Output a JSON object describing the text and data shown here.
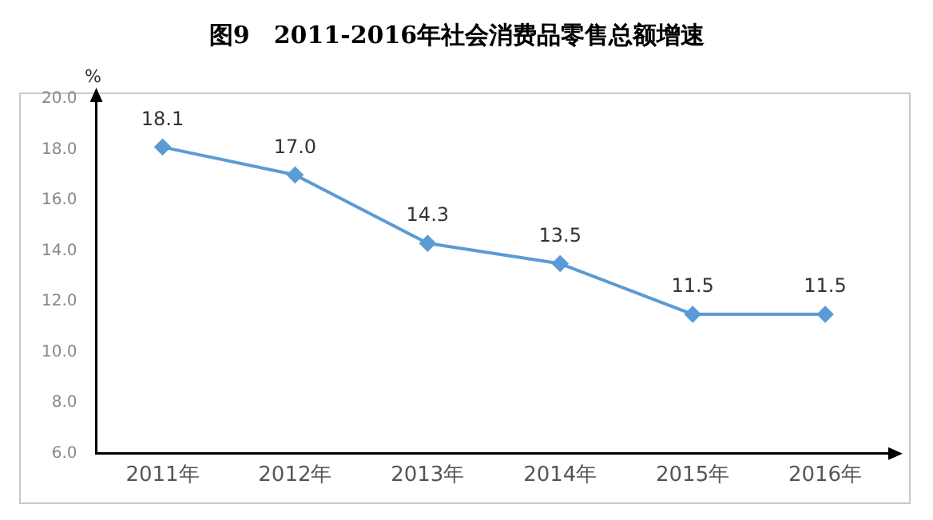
{
  "chart_data": {
    "type": "line",
    "title": "图9　2011-2016年社会消费品零售总额增速",
    "ylabel": "%",
    "categories": [
      "2011年",
      "2012年",
      "2013年",
      "2014年",
      "2015年",
      "2016年"
    ],
    "series": [
      {
        "color": "#5b9bd5",
        "values": [
          18.1,
          17.0,
          14.3,
          13.5,
          11.5,
          11.5
        ],
        "value_labels": [
          "18.1",
          "17.0",
          "14.3",
          "13.5",
          "11.5",
          "11.5"
        ]
      }
    ],
    "ylim": [
      6,
      20
    ],
    "yticks": [
      {
        "value": 6,
        "label": "6.0"
      },
      {
        "value": 8,
        "label": "8.0"
      },
      {
        "value": 10,
        "label": "10.0"
      },
      {
        "value": 12,
        "label": "12.0"
      },
      {
        "value": 14,
        "label": "14.0"
      },
      {
        "value": 16,
        "label": "16.0"
      },
      {
        "value": 18,
        "label": "18.0"
      },
      {
        "value": 20,
        "label": "20.0"
      }
    ],
    "grid": false,
    "legend": false,
    "marker": "diamond",
    "line_style": "solid"
  }
}
